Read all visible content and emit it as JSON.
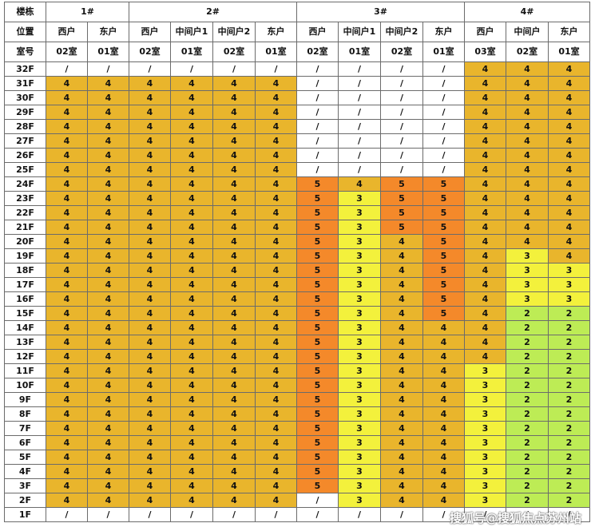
{
  "header": {
    "building_label": "楼栋",
    "position_label": "位置",
    "room_label": "室号",
    "buildings": [
      {
        "name": "1#",
        "span": 2
      },
      {
        "name": "2#",
        "span": 4
      },
      {
        "name": "3#",
        "span": 4
      },
      {
        "name": "4#",
        "span": 3
      }
    ],
    "positions": [
      "西户",
      "东户",
      "西户",
      "中间户1",
      "中间户2",
      "东户",
      "西户",
      "中间户1",
      "中间户2",
      "东户",
      "西户",
      "中间户",
      "东户"
    ],
    "rooms": [
      "02室",
      "01室",
      "02室",
      "01室",
      "02室",
      "01室",
      "02室",
      "01室",
      "02室",
      "01室",
      "03室",
      "02室",
      "01室"
    ]
  },
  "rows": [
    {
      "floor": "32F",
      "cells": [
        "/",
        "/",
        "/",
        "/",
        "/",
        "/",
        "/",
        "/",
        "/",
        "/",
        "4",
        "4",
        "4"
      ]
    },
    {
      "floor": "31F",
      "cells": [
        "4",
        "4",
        "4",
        "4",
        "4",
        "4",
        "/",
        "/",
        "/",
        "/",
        "4",
        "4",
        "4"
      ]
    },
    {
      "floor": "30F",
      "cells": [
        "4",
        "4",
        "4",
        "4",
        "4",
        "4",
        "/",
        "/",
        "/",
        "/",
        "4",
        "4",
        "4"
      ]
    },
    {
      "floor": "29F",
      "cells": [
        "4",
        "4",
        "4",
        "4",
        "4",
        "4",
        "/",
        "/",
        "/",
        "/",
        "4",
        "4",
        "4"
      ]
    },
    {
      "floor": "28F",
      "cells": [
        "4",
        "4",
        "4",
        "4",
        "4",
        "4",
        "/",
        "/",
        "/",
        "/",
        "4",
        "4",
        "4"
      ]
    },
    {
      "floor": "27F",
      "cells": [
        "4",
        "4",
        "4",
        "4",
        "4",
        "4",
        "/",
        "/",
        "/",
        "/",
        "4",
        "4",
        "4"
      ]
    },
    {
      "floor": "26F",
      "cells": [
        "4",
        "4",
        "4",
        "4",
        "4",
        "4",
        "/",
        "/",
        "/",
        "/",
        "4",
        "4",
        "4"
      ]
    },
    {
      "floor": "25F",
      "cells": [
        "4",
        "4",
        "4",
        "4",
        "4",
        "4",
        "/",
        "/",
        "/",
        "/",
        "4",
        "4",
        "4"
      ]
    },
    {
      "floor": "24F",
      "cells": [
        "4",
        "4",
        "4",
        "4",
        "4",
        "4",
        "5",
        "4",
        "5",
        "5",
        "4",
        "4",
        "4"
      ]
    },
    {
      "floor": "23F",
      "cells": [
        "4",
        "4",
        "4",
        "4",
        "4",
        "4",
        "5",
        "3",
        "5",
        "5",
        "4",
        "4",
        "4"
      ]
    },
    {
      "floor": "22F",
      "cells": [
        "4",
        "4",
        "4",
        "4",
        "4",
        "4",
        "5",
        "3",
        "5",
        "5",
        "4",
        "4",
        "4"
      ]
    },
    {
      "floor": "21F",
      "cells": [
        "4",
        "4",
        "4",
        "4",
        "4",
        "4",
        "5",
        "3",
        "5",
        "5",
        "4",
        "4",
        "4"
      ]
    },
    {
      "floor": "20F",
      "cells": [
        "4",
        "4",
        "4",
        "4",
        "4",
        "4",
        "5",
        "3",
        "4",
        "5",
        "4",
        "4",
        "4"
      ]
    },
    {
      "floor": "19F",
      "cells": [
        "4",
        "4",
        "4",
        "4",
        "4",
        "4",
        "5",
        "3",
        "4",
        "5",
        "4",
        "3",
        "4"
      ]
    },
    {
      "floor": "18F",
      "cells": [
        "4",
        "4",
        "4",
        "4",
        "4",
        "4",
        "5",
        "3",
        "4",
        "5",
        "4",
        "3",
        "3"
      ]
    },
    {
      "floor": "17F",
      "cells": [
        "4",
        "4",
        "4",
        "4",
        "4",
        "4",
        "5",
        "3",
        "4",
        "5",
        "4",
        "3",
        "3"
      ]
    },
    {
      "floor": "16F",
      "cells": [
        "4",
        "4",
        "4",
        "4",
        "4",
        "4",
        "5",
        "3",
        "4",
        "5",
        "4",
        "3",
        "3"
      ]
    },
    {
      "floor": "15F",
      "cells": [
        "4",
        "4",
        "4",
        "4",
        "4",
        "4",
        "5",
        "3",
        "4",
        "5",
        "4",
        "2",
        "2"
      ]
    },
    {
      "floor": "14F",
      "cells": [
        "4",
        "4",
        "4",
        "4",
        "4",
        "4",
        "5",
        "3",
        "4",
        "4",
        "4",
        "2",
        "2"
      ]
    },
    {
      "floor": "13F",
      "cells": [
        "4",
        "4",
        "4",
        "4",
        "4",
        "4",
        "5",
        "3",
        "4",
        "4",
        "4",
        "2",
        "2"
      ]
    },
    {
      "floor": "12F",
      "cells": [
        "4",
        "4",
        "4",
        "4",
        "4",
        "4",
        "5",
        "3",
        "4",
        "4",
        "4",
        "2",
        "2"
      ]
    },
    {
      "floor": "11F",
      "cells": [
        "4",
        "4",
        "4",
        "4",
        "4",
        "4",
        "5",
        "3",
        "4",
        "4",
        "3",
        "2",
        "2"
      ]
    },
    {
      "floor": "10F",
      "cells": [
        "4",
        "4",
        "4",
        "4",
        "4",
        "4",
        "5",
        "3",
        "4",
        "4",
        "3",
        "2",
        "2"
      ]
    },
    {
      "floor": "9F",
      "cells": [
        "4",
        "4",
        "4",
        "4",
        "4",
        "4",
        "5",
        "3",
        "4",
        "4",
        "3",
        "2",
        "2"
      ]
    },
    {
      "floor": "8F",
      "cells": [
        "4",
        "4",
        "4",
        "4",
        "4",
        "4",
        "5",
        "3",
        "4",
        "4",
        "3",
        "2",
        "2"
      ]
    },
    {
      "floor": "7F",
      "cells": [
        "4",
        "4",
        "4",
        "4",
        "4",
        "4",
        "5",
        "3",
        "4",
        "4",
        "3",
        "2",
        "2"
      ]
    },
    {
      "floor": "6F",
      "cells": [
        "4",
        "4",
        "4",
        "4",
        "4",
        "4",
        "5",
        "3",
        "4",
        "4",
        "3",
        "2",
        "2"
      ]
    },
    {
      "floor": "5F",
      "cells": [
        "4",
        "4",
        "4",
        "4",
        "4",
        "4",
        "5",
        "3",
        "4",
        "4",
        "3",
        "2",
        "2"
      ]
    },
    {
      "floor": "4F",
      "cells": [
        "4",
        "4",
        "4",
        "4",
        "4",
        "4",
        "5",
        "3",
        "4",
        "4",
        "3",
        "2",
        "2"
      ]
    },
    {
      "floor": "3F",
      "cells": [
        "4",
        "4",
        "4",
        "4",
        "4",
        "4",
        "5",
        "3",
        "4",
        "4",
        "3",
        "2",
        "2"
      ]
    },
    {
      "floor": "2F",
      "cells": [
        "4",
        "4",
        "4",
        "4",
        "4",
        "4",
        "/",
        "3",
        "4",
        "4",
        "3",
        "2",
        "2"
      ]
    },
    {
      "floor": "1F",
      "cells": [
        "/",
        "/",
        "/",
        "/",
        "/",
        "/",
        "/",
        "/",
        "/",
        "/",
        "/",
        "/",
        "/"
      ]
    }
  ],
  "cell_colors": {
    "slash": "#ffffff",
    "2": "#bdec55",
    "3": "#f3f13c",
    "4": "#e9b52c",
    "5": "#f4892a"
  },
  "watermark": "搜狐号@搜狐焦点苏州站"
}
